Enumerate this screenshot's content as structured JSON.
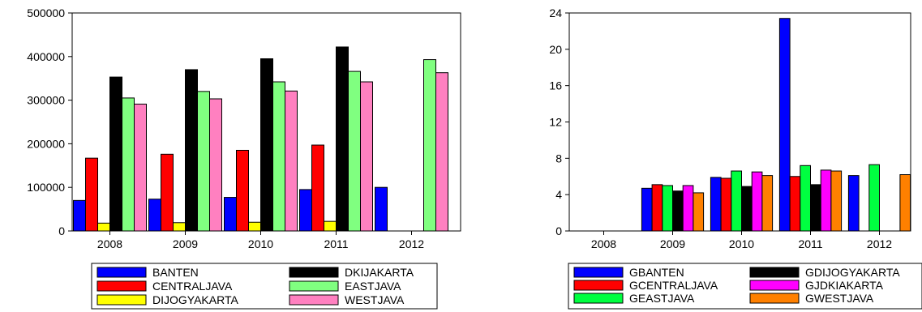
{
  "chart_data": [
    {
      "type": "bar",
      "categories": [
        "2008",
        "2009",
        "2010",
        "2011",
        "2012"
      ],
      "ylim": [
        0,
        500000
      ],
      "yticks": [
        0,
        100000,
        200000,
        300000,
        400000,
        500000
      ],
      "grid": false,
      "legend_position": "bottom",
      "series": [
        {
          "name": "BANTEN",
          "color": "#0000ff",
          "values": [
            70000,
            73000,
            77000,
            95000,
            100000
          ]
        },
        {
          "name": "CENTRALJAVA",
          "color": "#ff0000",
          "values": [
            167000,
            176000,
            185000,
            197000,
            null
          ]
        },
        {
          "name": "DIJOGYAKARTA",
          "color": "#ffff00",
          "values": [
            18000,
            19000,
            20000,
            22000,
            null
          ]
        },
        {
          "name": "DKIJAKARTA",
          "color": "#000000",
          "values": [
            353000,
            370000,
            395000,
            422000,
            null
          ]
        },
        {
          "name": "EASTJAVA",
          "color": "#80ff80",
          "values": [
            305000,
            320000,
            342000,
            366000,
            393000
          ]
        },
        {
          "name": "WESTJAVA",
          "color": "#ff80c0",
          "values": [
            291000,
            303000,
            321000,
            342000,
            363000
          ]
        }
      ],
      "legend_order": [
        0,
        3,
        1,
        4,
        2,
        5
      ]
    },
    {
      "type": "bar",
      "categories": [
        "2008",
        "2009",
        "2010",
        "2011",
        "2012"
      ],
      "ylim": [
        0,
        24
      ],
      "yticks": [
        0,
        4,
        8,
        12,
        16,
        20,
        24
      ],
      "grid": false,
      "legend_position": "bottom",
      "series": [
        {
          "name": "GBANTEN",
          "color": "#0000ff",
          "values": [
            null,
            4.7,
            5.9,
            23.4,
            6.1
          ]
        },
        {
          "name": "GCENTRALJAVA",
          "color": "#ff0000",
          "values": [
            null,
            5.1,
            5.8,
            6.0,
            null
          ]
        },
        {
          "name": "GEASTJAVA",
          "color": "#00ff40",
          "values": [
            null,
            5.0,
            6.6,
            7.2,
            7.3
          ]
        },
        {
          "name": "GDIJOGYAKARTA",
          "color": "#000000",
          "values": [
            null,
            4.4,
            4.9,
            5.1,
            null
          ]
        },
        {
          "name": "GJDKIAKARTA",
          "color": "#ff00ff",
          "values": [
            null,
            5.0,
            6.5,
            6.7,
            null
          ]
        },
        {
          "name": "GWESTJAVA",
          "color": "#ff8000",
          "values": [
            null,
            4.2,
            6.1,
            6.6,
            6.2
          ]
        }
      ],
      "legend_order": [
        0,
        3,
        1,
        4,
        2,
        5
      ]
    }
  ]
}
